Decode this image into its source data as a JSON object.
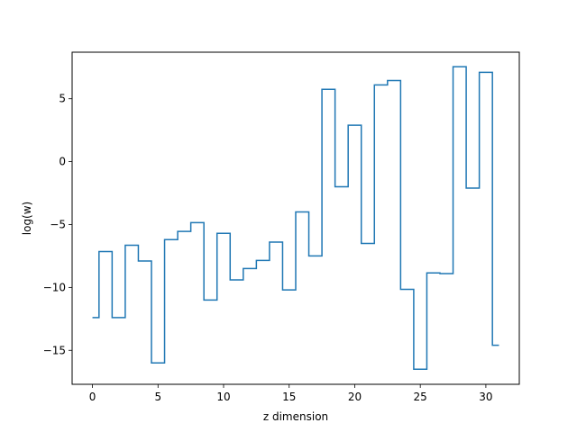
{
  "chart_data": {
    "type": "line",
    "drawstyle": "steps-mid",
    "title": "",
    "xlabel": "z dimension",
    "ylabel": "log(w)",
    "xlim": [
      -1.55,
      32.55
    ],
    "ylim": [
      -17.7,
      8.7
    ],
    "xticks": [
      0,
      5,
      10,
      15,
      20,
      25,
      30
    ],
    "yticks": [
      -15,
      -10,
      -5,
      0,
      5
    ],
    "grid": false,
    "color": "#1f77b4",
    "x": [
      0,
      1,
      2,
      3,
      4,
      5,
      6,
      7,
      8,
      9,
      10,
      11,
      12,
      13,
      14,
      15,
      16,
      17,
      18,
      19,
      20,
      21,
      22,
      23,
      24,
      25,
      26,
      27,
      28,
      29,
      30,
      31
    ],
    "y": [
      -12.4,
      -7.15,
      -12.4,
      -6.65,
      -7.9,
      -16.0,
      -6.2,
      -5.55,
      -4.85,
      -11.0,
      -5.7,
      -9.4,
      -8.5,
      -7.85,
      -6.4,
      -10.2,
      -4.0,
      -7.5,
      5.75,
      -2.0,
      2.9,
      -6.5,
      6.1,
      6.45,
      -10.15,
      -16.5,
      -8.85,
      -8.9,
      7.55,
      -2.1,
      7.1,
      -14.6
    ]
  }
}
